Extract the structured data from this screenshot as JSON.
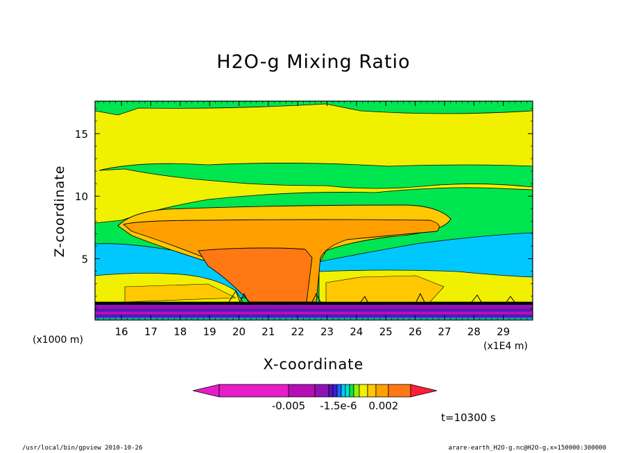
{
  "chart_data": {
    "type": "contour",
    "title": "H2O-g Mixing Ratio",
    "xlabel": "X-coordinate",
    "ylabel": "Z-coordinate",
    "x_unit": "(x1E4 m)",
    "y_unit": "(x1000 m)",
    "xlim": [
      15.1,
      30.0
    ],
    "ylim": [
      0.1,
      17.6
    ],
    "x_ticks": [
      "16",
      "17",
      "18",
      "19",
      "20",
      "21",
      "22",
      "23",
      "24",
      "25",
      "26",
      "27",
      "28",
      "29"
    ],
    "y_ticks": [
      "5",
      "10",
      "15"
    ],
    "x_tick_values": [
      16,
      17,
      18,
      19,
      20,
      21,
      22,
      23,
      24,
      25,
      26,
      27,
      28,
      29
    ],
    "y_tick_values": [
      5,
      10,
      15
    ],
    "colorbar": {
      "labels": [
        "-0.005",
        "-1.5e-6",
        "0.002"
      ],
      "colors": [
        "#e61ec8",
        "#b40fb4",
        "#8c14b4",
        "#5a14b4",
        "#3c1edc",
        "#1e64ff",
        "#00c8ff",
        "#00e6c8",
        "#00e650",
        "#96f000",
        "#f0f000",
        "#ffc800",
        "#ffa000",
        "#ff7814",
        "#ff1e3c"
      ]
    },
    "time_label": "t=10300 s"
  },
  "footer": {
    "left": "/usr/local/bin/gpview  2010-10-26",
    "right": "arare-earth_H2O-g.nc@H2O-g,x=150000:300000"
  }
}
